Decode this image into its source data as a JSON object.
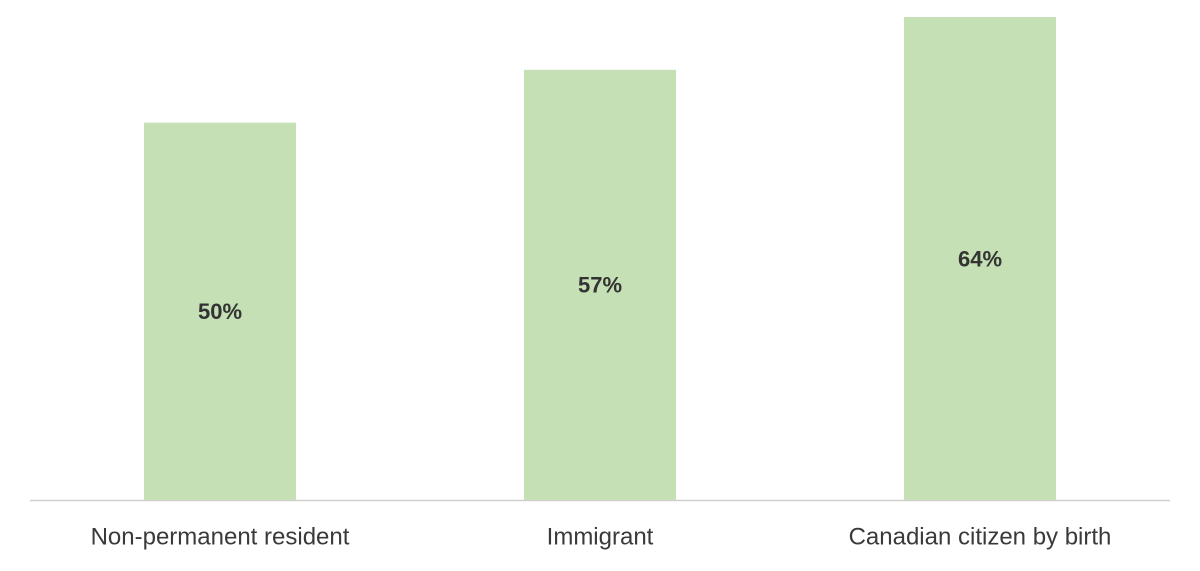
{
  "chart_data": {
    "type": "bar",
    "categories": [
      "Non-permanent resident",
      "Immigrant",
      "Canadian citizen by birth"
    ],
    "values": [
      50,
      57,
      64
    ],
    "value_labels": [
      "50%",
      "57%",
      "64%"
    ],
    "color": "#c5e0b4"
  }
}
